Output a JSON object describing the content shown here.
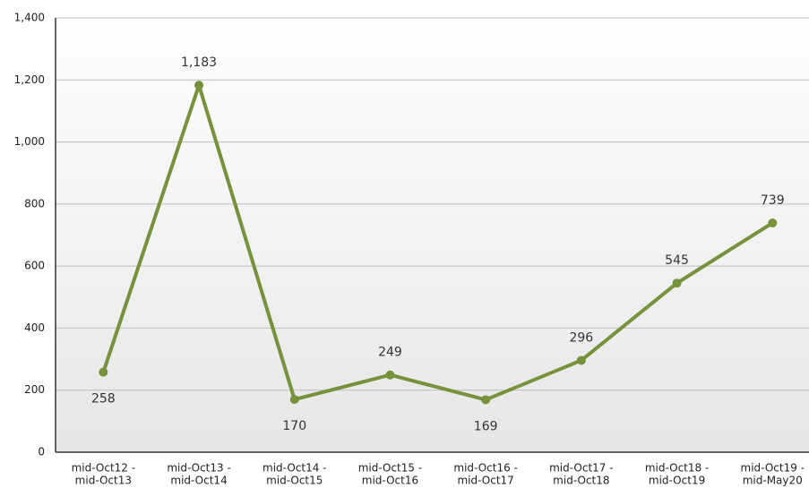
{
  "chart_data": {
    "type": "line",
    "categories": [
      [
        "mid-Oct12 -",
        "mid-Oct13"
      ],
      [
        "mid-Oct13 -",
        "mid-Oct14"
      ],
      [
        "mid-Oct14 -",
        "mid-Oct15"
      ],
      [
        "mid-Oct15 -",
        "mid-Oct16"
      ],
      [
        "mid-Oct16 -",
        "mid-Oct17"
      ],
      [
        "mid-Oct17 -",
        "mid-Oct18"
      ],
      [
        "mid-Oct18 -",
        "mid-Oct19"
      ],
      [
        "mid-Oct19 -",
        "mid-May20"
      ]
    ],
    "series": [
      {
        "color": "#76923c",
        "values": [
          258,
          1183,
          170,
          249,
          169,
          296,
          545,
          739
        ],
        "value_labels": [
          "258",
          "1,183",
          "170",
          "249",
          "169",
          "296",
          "545",
          "739"
        ]
      }
    ],
    "ylim": [
      0,
      1400
    ],
    "yticks": [
      0,
      200,
      400,
      600,
      800,
      {
        "value": 1000,
        "label": "1,000"
      },
      {
        "value": 1200,
        "label": "1,200"
      },
      {
        "value": 1400,
        "label": "1,400"
      }
    ],
    "grid": true
  }
}
